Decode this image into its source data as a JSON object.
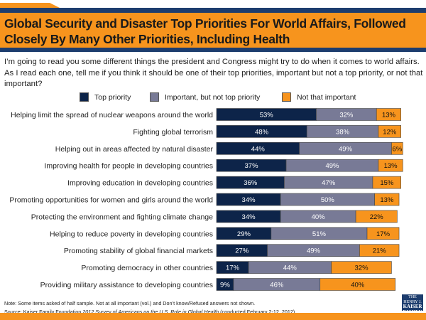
{
  "header": {
    "title": "Global Security and Disaster Top Priorities For World Affairs, Followed Closely By Many Other Priorities, Including Health"
  },
  "question": "I’m going to read you some different things the president and Congress might try to do when it comes to world affairs. As I read each one, tell me if you think it should be one of their top priorities, important but not a top priority, or not that important?",
  "colors": {
    "top": "#0d2449",
    "important": "#787a96",
    "not": "#f7941d",
    "orange": "#f7941d",
    "navy": "#1d3d6e"
  },
  "chart_data": {
    "type": "bar",
    "stacked": true,
    "orientation": "horizontal",
    "legend": [
      "Top priority",
      "Important, but not top priority",
      "Not that important"
    ],
    "categories": [
      "Helping limit the spread of nuclear weapons around the world",
      "Fighting global terrorism",
      "Helping out in areas affected by natural disaster",
      "Improving health for people in developing countries",
      "Improving education in developing countries",
      "Promoting opportunities for women and girls around the world",
      "Protecting the environment and fighting climate change",
      "Helping to reduce poverty in developing countries",
      "Promoting stability of global financial markets",
      "Promoting democracy in other countries",
      "Providing military assistance to developing countries"
    ],
    "series": [
      {
        "name": "Top priority",
        "values": [
          53,
          48,
          44,
          37,
          36,
          34,
          34,
          29,
          27,
          17,
          9
        ]
      },
      {
        "name": "Important, but not top priority",
        "values": [
          32,
          38,
          49,
          49,
          47,
          50,
          40,
          51,
          49,
          44,
          46
        ]
      },
      {
        "name": "Not that important",
        "values": [
          13,
          12,
          6,
          13,
          15,
          13,
          22,
          17,
          21,
          32,
          40
        ]
      }
    ],
    "unit": "%"
  },
  "footer": {
    "note": "Note: Some items asked of half sample. Not at all important (vol.) and Don’t know/Refused answers not shown.",
    "source_prefix": "Source: Kaiser Family Foundation ",
    "source_title": "2012 Survey of Americans on the U.S. Role in Global Health",
    "source_suffix": " (conducted February 2-12, 2012)",
    "logo": "THE HENRY J. KAISER FAMILY FOUNDATION"
  }
}
